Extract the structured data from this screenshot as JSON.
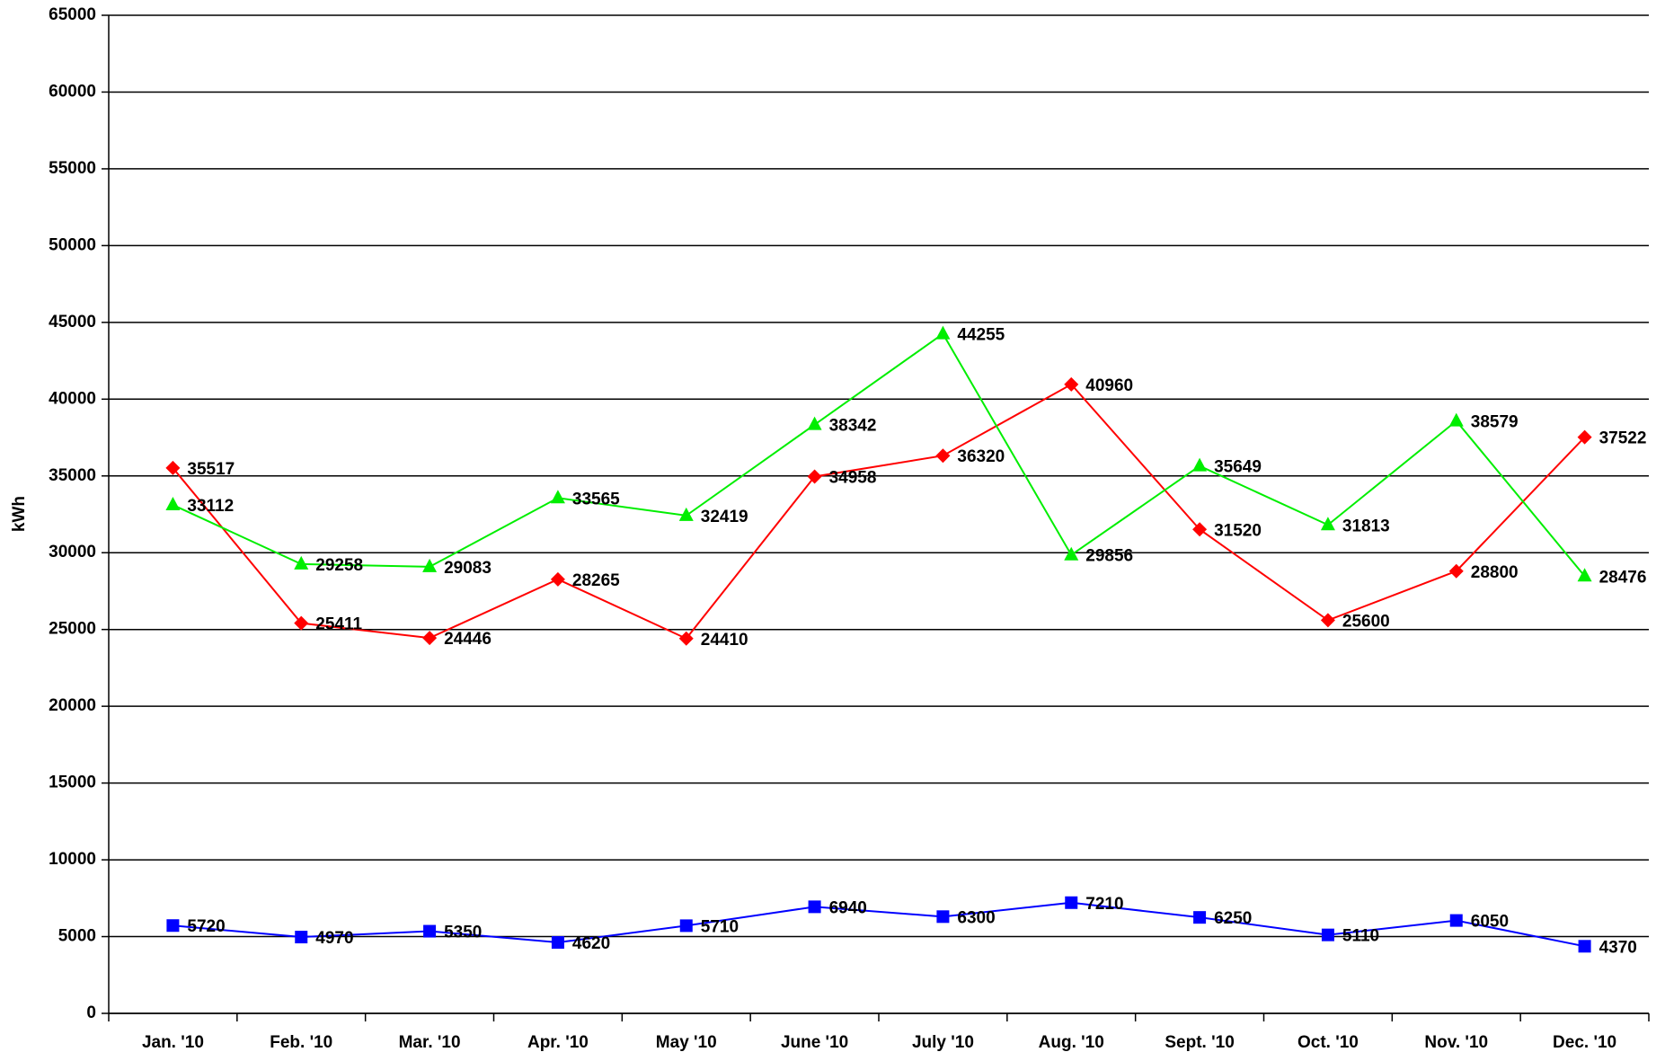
{
  "chart_data": {
    "type": "line",
    "ylabel": "kWh",
    "categories": [
      "Jan. '10",
      "Feb. '10",
      "Mar. '10",
      "Apr. '10",
      "May '10",
      "June '10",
      "July '10",
      "Aug. '10",
      "Sept. '10",
      "Oct. '10",
      "Nov. '10",
      "Dec. '10"
    ],
    "series": [
      {
        "color": "#ff0000",
        "marker": "diamond",
        "values": [
          35517,
          25411,
          24446,
          28265,
          24410,
          34958,
          36320,
          40960,
          31520,
          25600,
          28800,
          37522
        ]
      },
      {
        "color": "#00ee00",
        "marker": "triangle",
        "values": [
          33112,
          29258,
          29083,
          33565,
          32419,
          38342,
          44255,
          29856,
          35649,
          31813,
          38579,
          28476
        ]
      },
      {
        "color": "#0000ff",
        "marker": "square",
        "values": [
          5720,
          4970,
          5350,
          4620,
          5710,
          6940,
          6300,
          7210,
          6250,
          5110,
          6050,
          4370
        ]
      }
    ],
    "ylim": [
      0,
      65000
    ],
    "yticks": [
      0,
      5000,
      10000,
      15000,
      20000,
      25000,
      30000,
      35000,
      40000,
      45000,
      50000,
      55000,
      60000,
      65000
    ],
    "grid": true
  }
}
